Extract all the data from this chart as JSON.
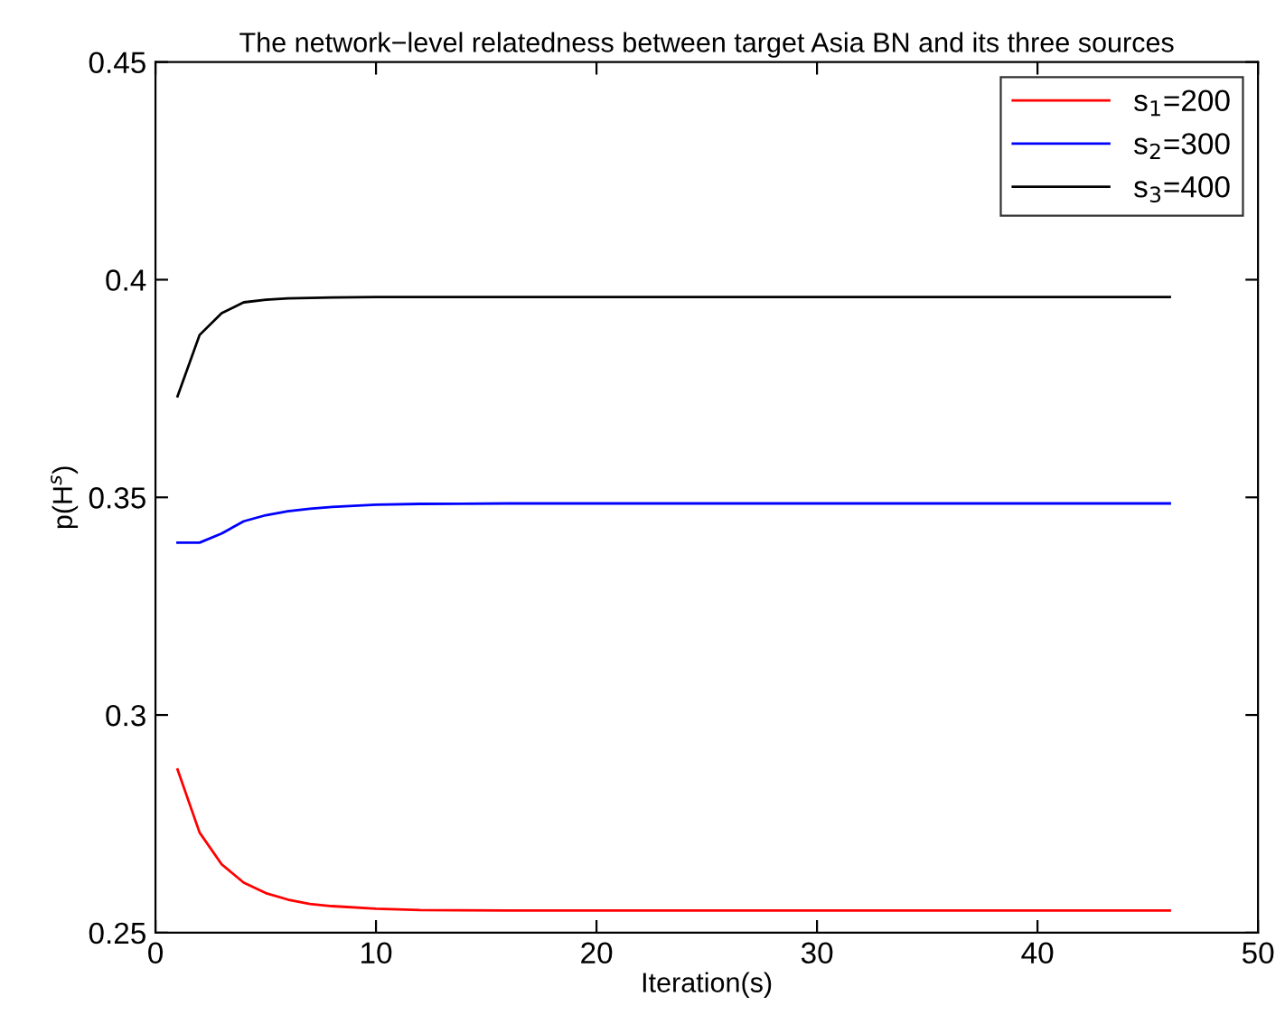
{
  "chart_data": {
    "type": "line",
    "title": "The network−level relatedness between target Asia BN and its three sources",
    "xlabel": "Iteration(s)",
    "ylabel": "p(H$^{s}$)",
    "xlim": [
      0,
      50
    ],
    "xticks": [
      0,
      10,
      20,
      30,
      40,
      50
    ],
    "ylim": [
      0.25,
      0.45
    ],
    "yticks": [
      0.25,
      0.3,
      0.35,
      0.4,
      0.45
    ],
    "grid": false,
    "legend": "top right",
    "marker": "none",
    "line_style": "solid",
    "series": [
      {
        "name": "s$_{1}$=200",
        "color": "#ff0000",
        "x": [
          1,
          2,
          3,
          4,
          5,
          6,
          7,
          8,
          10,
          12,
          16,
          20,
          30,
          46
        ],
        "values": [
          0.2875,
          0.273,
          0.2657,
          0.2615,
          0.2591,
          0.2576,
          0.2566,
          0.2561,
          0.2555,
          0.2552,
          0.2551,
          0.2551,
          0.2551,
          0.2551
        ]
      },
      {
        "name": "s$_{2}$=300",
        "color": "#0000ff",
        "x": [
          1,
          2,
          3,
          4,
          5,
          6,
          7,
          8,
          10,
          12,
          16,
          20,
          30,
          46
        ],
        "values": [
          0.3396,
          0.3396,
          0.3417,
          0.3445,
          0.3459,
          0.3468,
          0.3474,
          0.3478,
          0.3483,
          0.3485,
          0.3486,
          0.3486,
          0.3486,
          0.3486
        ]
      },
      {
        "name": "s$_{3}$=400",
        "color": "#000000",
        "x": [
          1,
          2,
          3,
          4,
          5,
          6,
          8,
          10,
          12,
          16,
          20,
          30,
          46
        ],
        "values": [
          0.3732,
          0.3873,
          0.3923,
          0.3948,
          0.3954,
          0.3957,
          0.3959,
          0.396,
          0.396,
          0.396,
          0.396,
          0.396,
          0.396
        ]
      }
    ]
  }
}
